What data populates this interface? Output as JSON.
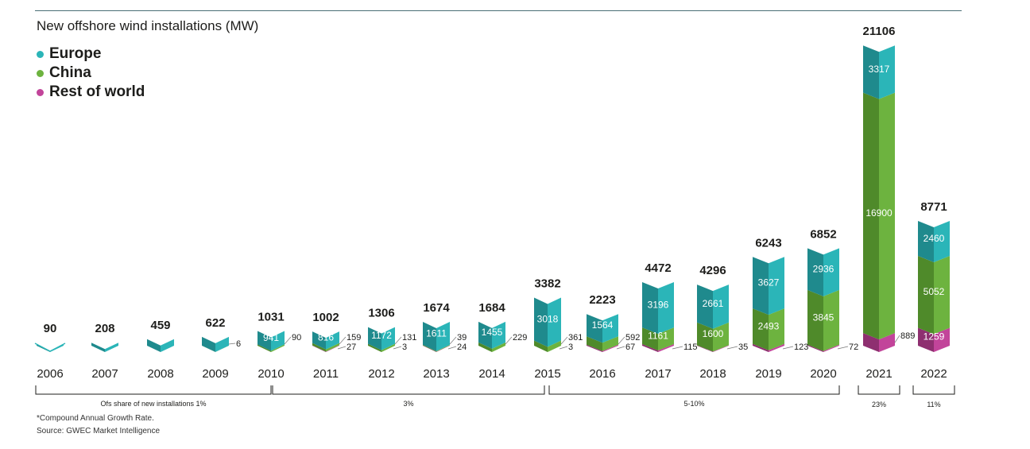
{
  "title": "New offshore wind installations (MW)",
  "legend": [
    {
      "label": "Europe",
      "color": "#2bb5b8"
    },
    {
      "label": "China",
      "color": "#6db33f"
    },
    {
      "label": "Rest of world",
      "color": "#c2449a"
    }
  ],
  "chart_data": {
    "type": "bar",
    "stacked": true,
    "categories": [
      "2006",
      "2007",
      "2008",
      "2009",
      "2010",
      "2011",
      "2012",
      "2013",
      "2014",
      "2015",
      "2016",
      "2017",
      "2018",
      "2019",
      "2020",
      "2021",
      "2022"
    ],
    "totals": [
      90,
      208,
      459,
      622,
      1031,
      1002,
      1306,
      1674,
      1684,
      3382,
      2223,
      4472,
      4296,
      6243,
      6852,
      21106,
      8771
    ],
    "series": [
      {
        "name": "Europe",
        "values": [
          90,
          208,
          459,
          616,
          941,
          816,
          1172,
          1611,
          1455,
          3018,
          1564,
          3196,
          2661,
          3627,
          2936,
          3317,
          2460
        ]
      },
      {
        "name": "China",
        "values": [
          0,
          0,
          0,
          6,
          90,
          159,
          131,
          39,
          229,
          361,
          592,
          1161,
          1600,
          2493,
          3845,
          16900,
          5052
        ]
      },
      {
        "name": "Rest of world",
        "values": [
          0,
          0,
          0,
          0,
          0,
          27,
          3,
          24,
          0,
          3,
          67,
          115,
          35,
          123,
          72,
          889,
          1259
        ]
      }
    ],
    "data_labels": {
      "europe": [
        "",
        "",
        "",
        "",
        "941",
        "816",
        "1172",
        "1611",
        "1455",
        "3018",
        "1564",
        "3196",
        "2661",
        "3627",
        "2936",
        "3317",
        "2460"
      ],
      "china": [
        "",
        "",
        "",
        "6",
        "90",
        "159",
        "131",
        "39",
        "229",
        "361",
        "592",
        "1161",
        "1600",
        "2493",
        "3845",
        "16900",
        "5052"
      ],
      "row": [
        "",
        "",
        "",
        "",
        "",
        "27",
        "3",
        "24",
        "",
        "3",
        "67",
        "115",
        "35",
        "123",
        "72",
        "889",
        "1259"
      ]
    },
    "groups": [
      {
        "label": "Ofs share of new installations 1%",
        "from": 0,
        "to": 4
      },
      {
        "label": "3%",
        "from": 4,
        "to": 9
      },
      {
        "label": "5-10%",
        "from": 9,
        "to": 14
      },
      {
        "label": "23%",
        "from": 15,
        "to": 15
      },
      {
        "label": "11%",
        "from": 16,
        "to": 16
      }
    ]
  },
  "footnotes": [
    "*Compound Annual Growth Rate.",
    "Source: GWEC Market Intelligence"
  ]
}
